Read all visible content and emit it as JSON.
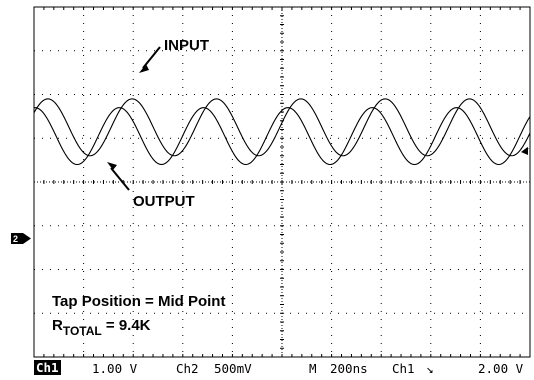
{
  "chart_data": {
    "type": "line",
    "title": "",
    "xlabel": "",
    "ylabel": "",
    "grid": true,
    "x_divisions": 10,
    "y_divisions": 8,
    "series": [
      {
        "name": "INPUT",
        "period_divisions": 1.7,
        "peak_division": 2.3,
        "trough_division": 0.4,
        "color": "#000000"
      },
      {
        "name": "OUTPUT",
        "period_divisions": 1.7,
        "peak_division": 2.1,
        "trough_division": 0.6,
        "color": "#000000"
      }
    ],
    "annotations": {
      "input": "INPUT",
      "output": "OUTPUT",
      "tap_position": "Tap Position = Mid Point",
      "rtotal_prefix": "R",
      "rtotal_sub": "TOTAL",
      "rtotal_value": " = 9.4K"
    }
  },
  "status_bar": {
    "ch1_label": "Ch1",
    "ch1_scale": "1.00 V",
    "ch2_label": "Ch2",
    "ch2_scale": "500mV",
    "timebase_label": "M",
    "timebase_value": "200ns",
    "trigger_source": "Ch1",
    "trigger_slope": "↘",
    "trigger_level": "2.00 V"
  },
  "ref_marker": "2"
}
